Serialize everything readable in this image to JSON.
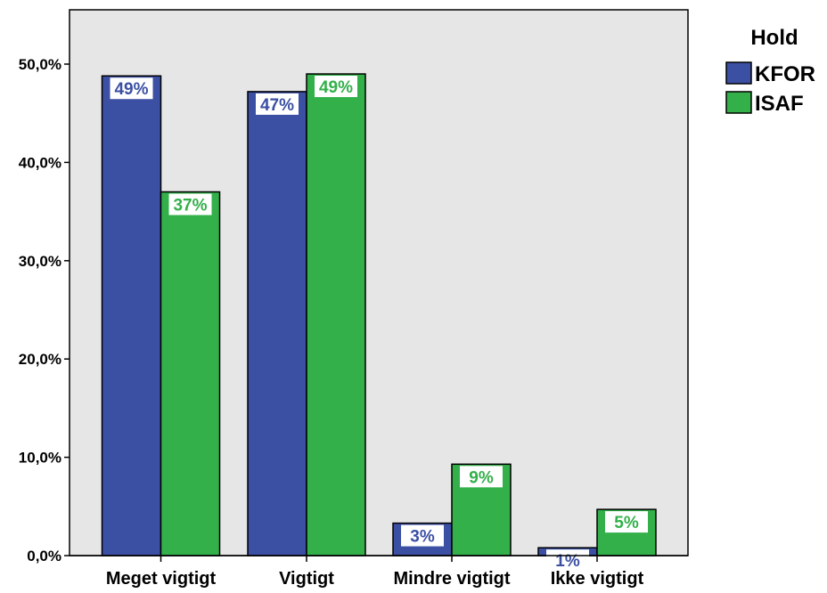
{
  "chart_data": {
    "type": "bar",
    "categories": [
      "Meget vigtigt",
      "Vigtigt",
      "Mindre vigtigt",
      "Ikke vigtigt"
    ],
    "series": [
      {
        "name": "KFOR",
        "values": [
          48.8,
          47.2,
          3.3,
          0.8
        ],
        "labels": [
          "49%",
          "47%",
          "3%",
          "1%"
        ],
        "color": "#3b4fa3"
      },
      {
        "name": "ISAF",
        "values": [
          37.0,
          49.0,
          9.3,
          4.7
        ],
        "labels": [
          "37%",
          "49%",
          "9%",
          "5%"
        ],
        "color": "#33b04a"
      }
    ],
    "ylim": [
      0,
      55
    ],
    "yticks": [
      {
        "value": 0,
        "label": "0,0%"
      },
      {
        "value": 10,
        "label": "10,0%"
      },
      {
        "value": 20,
        "label": "20,0%"
      },
      {
        "value": 30,
        "label": "30,0%"
      },
      {
        "value": 40,
        "label": "40,0%"
      },
      {
        "value": 50,
        "label": "50,0%"
      }
    ],
    "legend": {
      "title": "Hold",
      "position": "right"
    },
    "grid": false,
    "background": "#e6e6e6"
  }
}
